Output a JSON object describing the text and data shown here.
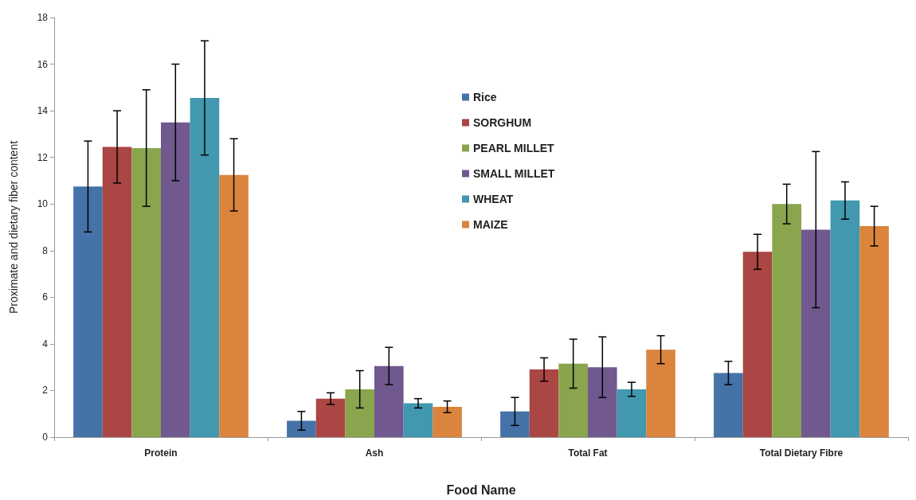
{
  "chart_data": {
    "type": "bar",
    "xlabel": "Food Name",
    "ylabel": "Proximate and dietary fiber content",
    "categories": [
      "Protein",
      "Ash",
      "Total Fat",
      "Total Dietary Fibre"
    ],
    "series": [
      {
        "name": "Rice",
        "color": "#4572a7",
        "values": [
          10.75,
          0.7,
          1.1,
          2.75
        ],
        "errors": [
          1.95,
          0.4,
          0.6,
          0.5
        ]
      },
      {
        "name": "SORGHUM",
        "color": "#aa4643",
        "values": [
          12.45,
          1.65,
          2.9,
          7.95
        ],
        "errors": [
          1.55,
          0.25,
          0.5,
          0.75
        ]
      },
      {
        "name": "PEARL MILLET",
        "color": "#89a54e",
        "values": [
          12.4,
          2.05,
          3.15,
          10.0
        ],
        "errors": [
          2.5,
          0.8,
          1.05,
          0.85
        ]
      },
      {
        "name": "SMALL MILLET",
        "color": "#71588f",
        "values": [
          13.5,
          3.05,
          3.0,
          8.9
        ],
        "errors": [
          2.5,
          0.8,
          1.3,
          3.35
        ]
      },
      {
        "name": "WHEAT",
        "color": "#4198af",
        "values": [
          14.55,
          1.45,
          2.05,
          10.15
        ],
        "errors": [
          2.45,
          0.2,
          0.3,
          0.8
        ]
      },
      {
        "name": "MAIZE",
        "color": "#db843d",
        "values": [
          11.25,
          1.3,
          3.75,
          9.05
        ],
        "errors": [
          1.55,
          0.25,
          0.6,
          0.85
        ]
      }
    ],
    "ylim": [
      0,
      18
    ],
    "yticks": [
      0,
      2,
      4,
      6,
      8,
      10,
      12,
      14,
      16,
      18
    ],
    "grid": false,
    "legend": "top"
  }
}
